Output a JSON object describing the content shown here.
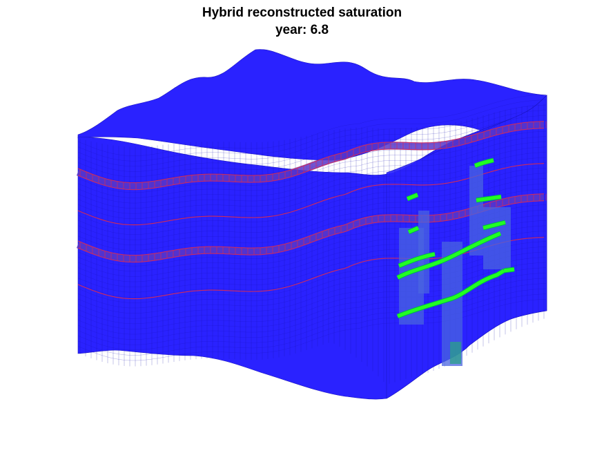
{
  "figure": {
    "title": "Hybrid reconstructed saturation",
    "subtitle": "year: 6.8"
  },
  "colors": {
    "background": "#ffffff",
    "grid_cell": "#2a22ff",
    "layer_highlight": "#d22a5a",
    "layer_fill": "#5a36c8",
    "plume": "#22ff22",
    "plume_edge": "#00b050",
    "plume_column": "#4a64e0",
    "plume_column_low": "#2aa08a"
  },
  "visualization": {
    "type": "3d-reservoir-grid",
    "colored_by": "saturation",
    "highlighted_layers": 4,
    "plume_visible": true
  }
}
